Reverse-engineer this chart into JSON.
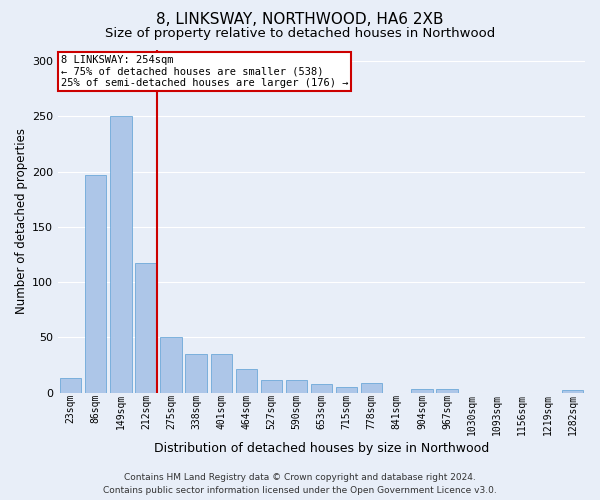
{
  "title": "8, LINKSWAY, NORTHWOOD, HA6 2XB",
  "subtitle": "Size of property relative to detached houses in Northwood",
  "xlabel": "Distribution of detached houses by size in Northwood",
  "ylabel": "Number of detached properties",
  "footer_line1": "Contains HM Land Registry data © Crown copyright and database right 2024.",
  "footer_line2": "Contains public sector information licensed under the Open Government Licence v3.0.",
  "categories": [
    "23sqm",
    "86sqm",
    "149sqm",
    "212sqm",
    "275sqm",
    "338sqm",
    "401sqm",
    "464sqm",
    "527sqm",
    "590sqm",
    "653sqm",
    "715sqm",
    "778sqm",
    "841sqm",
    "904sqm",
    "967sqm",
    "1030sqm",
    "1093sqm",
    "1156sqm",
    "1219sqm",
    "1282sqm"
  ],
  "values": [
    13,
    197,
    250,
    117,
    50,
    35,
    35,
    21,
    11,
    11,
    8,
    5,
    9,
    0,
    3,
    3,
    0,
    0,
    0,
    0,
    2
  ],
  "bar_color": "#adc6e8",
  "bar_edge_color": "#5a9fd4",
  "bar_linewidth": 0.5,
  "vline_color": "#cc0000",
  "vline_x_index": 3,
  "annotation_text": "8 LINKSWAY: 254sqm\n← 75% of detached houses are smaller (538)\n25% of semi-detached houses are larger (176) →",
  "annotation_box_facecolor": "#ffffff",
  "annotation_box_edgecolor": "#cc0000",
  "ylim": [
    0,
    310
  ],
  "yticks": [
    0,
    50,
    100,
    150,
    200,
    250,
    300
  ],
  "background_color": "#e8eef8",
  "grid_color": "#ffffff",
  "title_fontsize": 11,
  "subtitle_fontsize": 9.5,
  "axis_label_fontsize": 8.5,
  "tick_fontsize": 7,
  "footer_fontsize": 6.5
}
